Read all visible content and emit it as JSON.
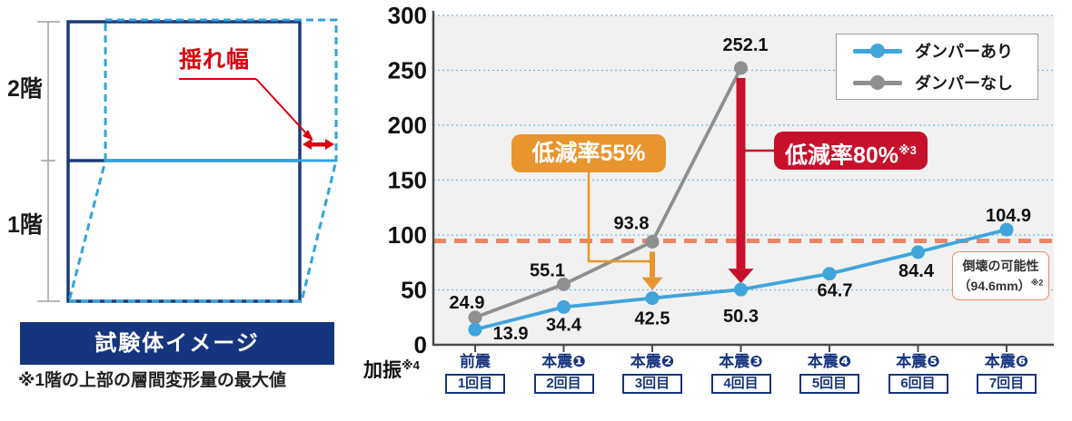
{
  "left_panel": {
    "floor2_label": "2階",
    "floor1_label": "1階",
    "sway_label": "揺れ幅",
    "banner": "試験体イメージ",
    "note": "※1階の上部の層間変形量の最大値"
  },
  "chart_data": {
    "type": "line",
    "categories": [
      {
        "main": "前震",
        "sub": "1回目"
      },
      {
        "main": "本震❶",
        "sub": "2回目"
      },
      {
        "main": "本震❷",
        "sub": "3回目"
      },
      {
        "main": "本震❸",
        "sub": "4回目"
      },
      {
        "main": "本震❹",
        "sub": "5回目"
      },
      {
        "main": "本震❺",
        "sub": "6回目"
      },
      {
        "main": "本震❻",
        "sub": "7回目"
      }
    ],
    "series": [
      {
        "name": "ダンパーあり",
        "color": "#3fa5dc",
        "values": [
          13.9,
          34.4,
          42.5,
          50.3,
          64.7,
          84.4,
          104.9
        ],
        "label_offsets": [
          [
            39,
            4
          ],
          [
            0,
            19
          ],
          [
            0,
            22
          ],
          [
            0,
            29
          ],
          [
            6,
            18
          ],
          [
            -2,
            20
          ],
          [
            2,
            -16
          ]
        ]
      },
      {
        "name": "ダンパーなし",
        "color": "#8f8f8f",
        "values": [
          24.9,
          55.1,
          93.8,
          252.1
        ],
        "label_offsets": [
          [
            -9,
            -17
          ],
          [
            -18,
            -16
          ],
          [
            -23,
            -21
          ],
          [
            5,
            -26
          ]
        ]
      }
    ],
    "ylim": [
      0,
      300
    ],
    "ytick_step": 50,
    "grid": true,
    "grid_color": "#70b8e0",
    "plot_bg": "#f1f1f1",
    "axis_color": "#4a4a4a",
    "legend_position": "top-right",
    "threshold": {
      "value": 94.6,
      "color": "#ec8566",
      "label": "倒壊の可能性",
      "sublabel": "（94.6mm）",
      "sup": "※2"
    },
    "annotations": [
      {
        "id": "orange",
        "label": "低減率55%",
        "sup": "",
        "color": "#e8952e",
        "category_index": 2,
        "from_value": 93.8,
        "to_value": 42.5
      },
      {
        "id": "red",
        "label": "低減率80%",
        "sup": "※3",
        "color": "#c7102a",
        "category_index": 3,
        "from_value": 252.1,
        "to_value": 50.3
      }
    ]
  },
  "chart_texts": {
    "collapse_box": {
      "line1": "倒壊の可能性",
      "line2": "（94.6mm）",
      "sup": "※2"
    },
    "x_axis_title": {
      "label": "加振",
      "sup": "※4"
    }
  }
}
